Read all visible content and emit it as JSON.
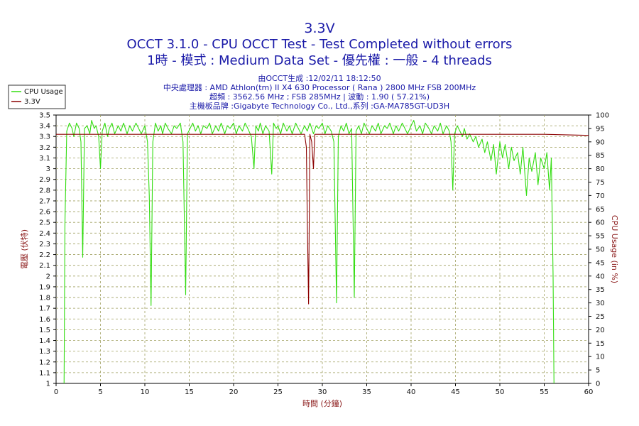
{
  "header": {
    "title": "3.3V",
    "subtitle": "OCCT 3.1.0 - CPU OCCT Test - Test Completed without errors",
    "subtitle2": "1時 - 模式 : Medium Data Set - 優先權 : 一般 - 4 threads"
  },
  "info": {
    "line1": "由OCCT生成 :12/02/11 18:12:50",
    "line2": "中央處理器 : AMD Athlon(tm) II X4 630 Processor ( Rana ) 2800 MHz FSB 200MHz",
    "line3": "超頻 : 3562.56 MHz ; FSB 285MHz | 波動 : 1.90 ( 57.21%)",
    "line4": "主機板品牌 :Gigabyte Technology Co., Ltd.,系列 :GA-MA785GT-UD3H"
  },
  "colors": {
    "cpu_usage": "#33dd11",
    "voltage": "#8b0000",
    "grid": "#a0a060",
    "title": "#1a1aa8",
    "axis_label": "#8b1a1a"
  },
  "chart_data": {
    "type": "line",
    "xlabel": "時間 (分鐘)",
    "ylabel": "電壓 (伏特)",
    "y2label": "CPU Usage (in %)",
    "xlim": [
      0,
      60
    ],
    "ylim": [
      1,
      3.5
    ],
    "y2lim": [
      0,
      100
    ],
    "xticks": [
      "0",
      "5",
      "10",
      "15",
      "20",
      "25",
      "30",
      "35",
      "40",
      "45",
      "50",
      "55",
      "60"
    ],
    "yticks": [
      "1",
      "1.1",
      "1.2",
      "1.3",
      "1.4",
      "1.5",
      "1.6",
      "1.7",
      "1.8",
      "1.9",
      "2",
      "2.1",
      "2.2",
      "2.3",
      "2.4",
      "2.5",
      "2.6",
      "2.7",
      "2.8",
      "2.9",
      "3",
      "3.1",
      "3.2",
      "3.3",
      "3.4",
      "3.5"
    ],
    "y2ticks": [
      "0",
      "5",
      "10",
      "15",
      "20",
      "25",
      "30",
      "35",
      "40",
      "45",
      "50",
      "55",
      "60",
      "65",
      "70",
      "75",
      "80",
      "85",
      "90",
      "95",
      "100"
    ],
    "grid": true,
    "legend_position": "top-left",
    "series": [
      {
        "name": "CPU Usage",
        "axis": "right",
        "color": "#33dd11",
        "points": [
          [
            0.9,
            0
          ],
          [
            1.0,
            60
          ],
          [
            1.2,
            94
          ],
          [
            1.5,
            97
          ],
          [
            1.8,
            95
          ],
          [
            2.0,
            92
          ],
          [
            2.3,
            97
          ],
          [
            2.6,
            95
          ],
          [
            2.8,
            90
          ],
          [
            3.0,
            47
          ],
          [
            3.2,
            95
          ],
          [
            3.5,
            96
          ],
          [
            3.8,
            93
          ],
          [
            4.0,
            98
          ],
          [
            4.3,
            95
          ],
          [
            4.5,
            96
          ],
          [
            4.8,
            92
          ],
          [
            5.0,
            80
          ],
          [
            5.2,
            94
          ],
          [
            5.5,
            97
          ],
          [
            5.8,
            92
          ],
          [
            6.0,
            95
          ],
          [
            6.3,
            97
          ],
          [
            6.6,
            93
          ],
          [
            7.0,
            96
          ],
          [
            7.3,
            94
          ],
          [
            7.6,
            97
          ],
          [
            8.0,
            93
          ],
          [
            8.3,
            96
          ],
          [
            8.6,
            94
          ],
          [
            9.0,
            97
          ],
          [
            9.3,
            95
          ],
          [
            9.6,
            93
          ],
          [
            10.0,
            96
          ],
          [
            10.3,
            90
          ],
          [
            10.5,
            70
          ],
          [
            10.7,
            29
          ],
          [
            10.9,
            90
          ],
          [
            11.2,
            97
          ],
          [
            11.5,
            94
          ],
          [
            11.8,
            96
          ],
          [
            12.0,
            93
          ],
          [
            12.3,
            97
          ],
          [
            12.6,
            95
          ],
          [
            13.0,
            93
          ],
          [
            13.3,
            96
          ],
          [
            13.6,
            95
          ],
          [
            14.0,
            97
          ],
          [
            14.3,
            90
          ],
          [
            14.6,
            33
          ],
          [
            14.8,
            93
          ],
          [
            15.1,
            95
          ],
          [
            15.4,
            97
          ],
          [
            15.7,
            94
          ],
          [
            16.0,
            96
          ],
          [
            16.3,
            93
          ],
          [
            16.6,
            96
          ],
          [
            17.0,
            95
          ],
          [
            17.3,
            97
          ],
          [
            17.6,
            93
          ],
          [
            18.0,
            96
          ],
          [
            18.3,
            94
          ],
          [
            18.6,
            97
          ],
          [
            19.0,
            93
          ],
          [
            19.3,
            96
          ],
          [
            19.6,
            95
          ],
          [
            20.0,
            97
          ],
          [
            20.3,
            93
          ],
          [
            20.6,
            96
          ],
          [
            21.0,
            94
          ],
          [
            21.3,
            97
          ],
          [
            21.6,
            95
          ],
          [
            22.0,
            92
          ],
          [
            22.3,
            80
          ],
          [
            22.5,
            96
          ],
          [
            22.8,
            94
          ],
          [
            23.0,
            97
          ],
          [
            23.3,
            93
          ],
          [
            23.6,
            96
          ],
          [
            24.0,
            94
          ],
          [
            24.3,
            78
          ],
          [
            24.5,
            97
          ],
          [
            24.8,
            95
          ],
          [
            25.0,
            96
          ],
          [
            25.3,
            93
          ],
          [
            25.6,
            97
          ],
          [
            26.0,
            94
          ],
          [
            26.3,
            96
          ],
          [
            26.6,
            93
          ],
          [
            27.0,
            97
          ],
          [
            27.3,
            95
          ],
          [
            27.6,
            93
          ],
          [
            28.0,
            96
          ],
          [
            28.3,
            94
          ],
          [
            28.6,
            97
          ],
          [
            29.0,
            93
          ],
          [
            29.3,
            96
          ],
          [
            29.6,
            95
          ],
          [
            30.0,
            97
          ],
          [
            30.3,
            93
          ],
          [
            30.6,
            96
          ],
          [
            31.0,
            94
          ],
          [
            31.3,
            90
          ],
          [
            31.6,
            30
          ],
          [
            31.8,
            92
          ],
          [
            32.1,
            96
          ],
          [
            32.4,
            94
          ],
          [
            32.7,
            97
          ],
          [
            33.0,
            93
          ],
          [
            33.3,
            95
          ],
          [
            33.6,
            32
          ],
          [
            33.8,
            94
          ],
          [
            34.1,
            96
          ],
          [
            34.4,
            93
          ],
          [
            34.7,
            97
          ],
          [
            35.0,
            95
          ],
          [
            35.3,
            93
          ],
          [
            35.6,
            96
          ],
          [
            36.0,
            94
          ],
          [
            36.3,
            97
          ],
          [
            36.6,
            93
          ],
          [
            37.0,
            96
          ],
          [
            37.3,
            95
          ],
          [
            37.6,
            97
          ],
          [
            38.0,
            93
          ],
          [
            38.3,
            96
          ],
          [
            38.6,
            94
          ],
          [
            39.0,
            97
          ],
          [
            39.3,
            95
          ],
          [
            39.6,
            93
          ],
          [
            40.0,
            96
          ],
          [
            40.3,
            98
          ],
          [
            40.6,
            94
          ],
          [
            41.0,
            96
          ],
          [
            41.3,
            93
          ],
          [
            41.6,
            97
          ],
          [
            42.0,
            95
          ],
          [
            42.3,
            93
          ],
          [
            42.6,
            96
          ],
          [
            43.0,
            94
          ],
          [
            43.3,
            97
          ],
          [
            43.6,
            93
          ],
          [
            44.0,
            96
          ],
          [
            44.3,
            94
          ],
          [
            44.5,
            90
          ],
          [
            44.7,
            72
          ],
          [
            44.9,
            93
          ],
          [
            45.2,
            96
          ],
          [
            45.5,
            94
          ],
          [
            45.8,
            92
          ],
          [
            46.0,
            95
          ],
          [
            46.3,
            91
          ],
          [
            46.6,
            93
          ],
          [
            47.0,
            90
          ],
          [
            47.3,
            92
          ],
          [
            47.6,
            88
          ],
          [
            48.0,
            91
          ],
          [
            48.3,
            86
          ],
          [
            48.6,
            90
          ],
          [
            49.0,
            83
          ],
          [
            49.3,
            89
          ],
          [
            49.6,
            78
          ],
          [
            50.0,
            90
          ],
          [
            50.3,
            84
          ],
          [
            50.6,
            89
          ],
          [
            51.0,
            80
          ],
          [
            51.3,
            88
          ],
          [
            51.6,
            83
          ],
          [
            52.0,
            86
          ],
          [
            52.3,
            78
          ],
          [
            52.6,
            88
          ],
          [
            53.0,
            70
          ],
          [
            53.3,
            84
          ],
          [
            53.6,
            79
          ],
          [
            54.0,
            86
          ],
          [
            54.3,
            74
          ],
          [
            54.6,
            84
          ],
          [
            55.0,
            80
          ],
          [
            55.3,
            86
          ],
          [
            55.6,
            72
          ],
          [
            55.8,
            84
          ],
          [
            56.0,
            40
          ],
          [
            56.1,
            0
          ]
        ]
      },
      {
        "name": "3.3V",
        "axis": "left",
        "color": "#8b0000",
        "points": [
          [
            0,
            3.32
          ],
          [
            5,
            3.32
          ],
          [
            10,
            3.32
          ],
          [
            15,
            3.32
          ],
          [
            20,
            3.32
          ],
          [
            25,
            3.32
          ],
          [
            28.0,
            3.32
          ],
          [
            28.2,
            3.2
          ],
          [
            28.3,
            2.55
          ],
          [
            28.45,
            1.74
          ],
          [
            28.6,
            3.32
          ],
          [
            28.8,
            3.25
          ],
          [
            29.0,
            3.0
          ],
          [
            29.15,
            3.32
          ],
          [
            30,
            3.32
          ],
          [
            35,
            3.32
          ],
          [
            40,
            3.32
          ],
          [
            45,
            3.32
          ],
          [
            50,
            3.32
          ],
          [
            55,
            3.32
          ],
          [
            60,
            3.31
          ]
        ]
      }
    ]
  }
}
